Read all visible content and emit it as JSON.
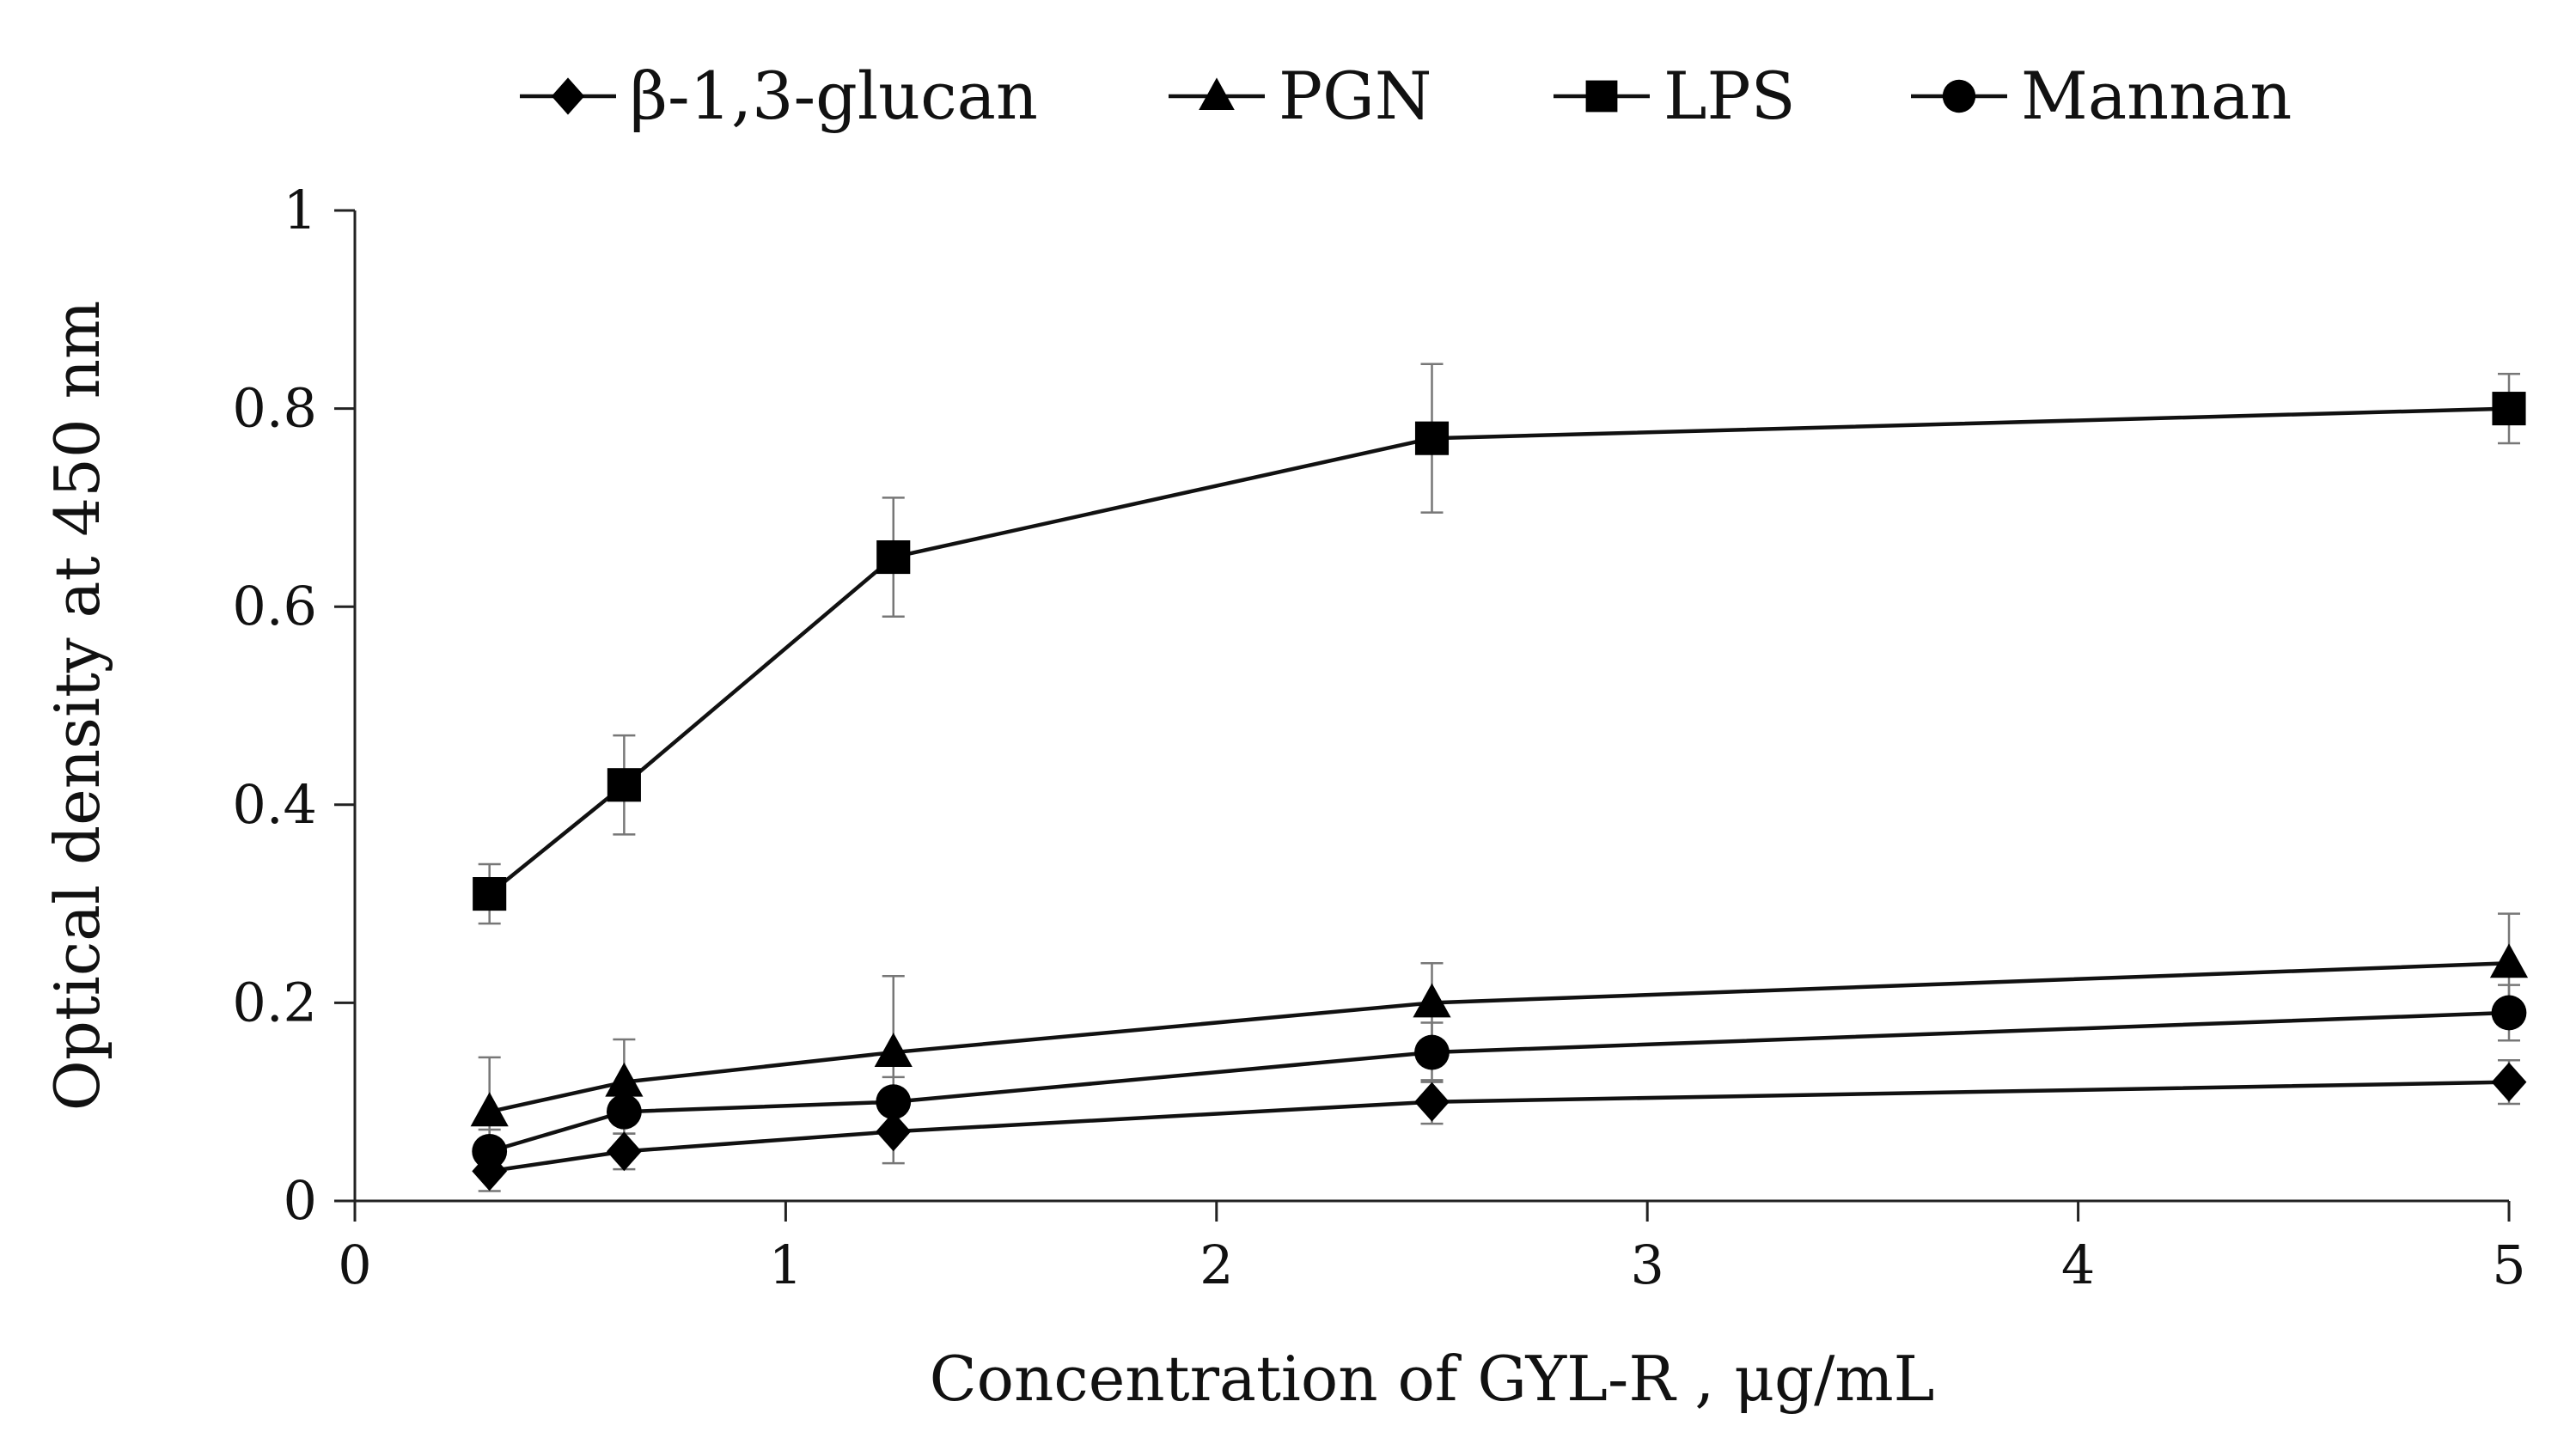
{
  "chart_data": {
    "type": "line",
    "xlabel": "Concentration of GYL-R , μg/mL",
    "ylabel": "Optical density at 450 nm",
    "xlim": [
      0,
      5
    ],
    "ylim": [
      0,
      1
    ],
    "xticks": [
      0,
      1,
      2,
      3,
      4,
      5
    ],
    "yticks": [
      0,
      0.2,
      0.4,
      0.6,
      0.8,
      1
    ],
    "xtick_labels": [
      "0",
      "1",
      "2",
      "3",
      "4",
      "5"
    ],
    "ytick_labels": [
      "0",
      "0.2",
      "0.4",
      "0.6",
      "0.8",
      "1"
    ],
    "grid": false,
    "legend_position": "top",
    "x": [
      0.3125,
      0.625,
      1.25,
      2.5,
      5
    ],
    "series": [
      {
        "name": "β-1,3-glucan",
        "marker": "diamond",
        "values": [
          0.03,
          0.05,
          0.07,
          0.1,
          0.12
        ],
        "errors": [
          0.02,
          0.018,
          0.032,
          0.022,
          0.022
        ]
      },
      {
        "name": "PGN",
        "marker": "triangle",
        "values": [
          0.09,
          0.12,
          0.15,
          0.2,
          0.24
        ],
        "errors": [
          0.055,
          0.043,
          0.077,
          0.04,
          0.05
        ]
      },
      {
        "name": "LPS",
        "marker": "square",
        "values": [
          0.31,
          0.42,
          0.65,
          0.77,
          0.8
        ],
        "errors": [
          0.03,
          0.05,
          0.06,
          0.075,
          0.035
        ]
      },
      {
        "name": "Mannan",
        "marker": "circle",
        "values": [
          0.05,
          0.09,
          0.1,
          0.15,
          0.19
        ],
        "errors": [
          0.022,
          0.022,
          0.025,
          0.03,
          0.028
        ]
      }
    ]
  },
  "colors": {
    "line": "#111111",
    "marker": "#000000",
    "errorbar": "#777777",
    "axis": "#222222"
  }
}
